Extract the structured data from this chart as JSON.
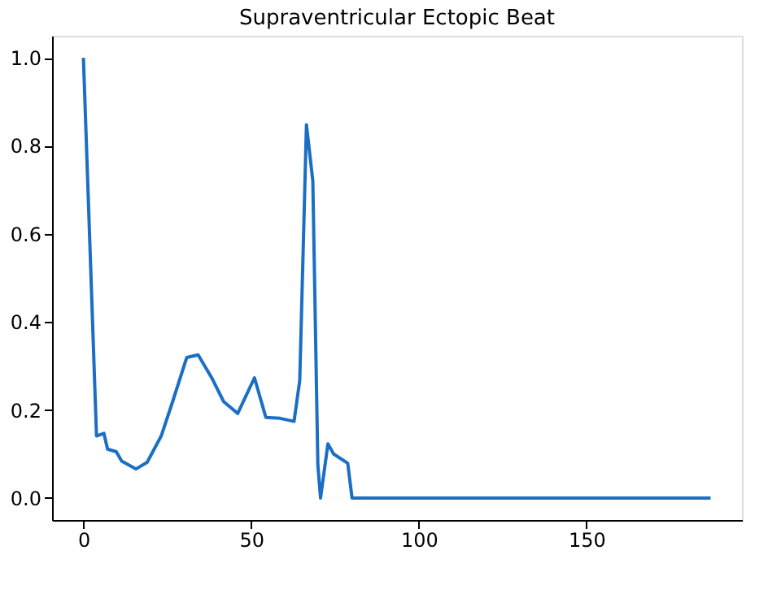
{
  "chart_data": {
    "type": "line",
    "title": "Supraventricular Ectopic Beat",
    "x": [
      0,
      3.9,
      6.1,
      7.2,
      9.8,
      11.4,
      15.7,
      19,
      23.2,
      26.6,
      30.8,
      34.2,
      38.4,
      41.8,
      46,
      51,
      54.4,
      58.6,
      62.8,
      64.5,
      66.5,
      68.4,
      69.9,
      70.7,
      72.9,
      74.6,
      78.8,
      80.1,
      187
    ],
    "series": [
      {
        "color": "#1a6fc4",
        "values": [
          1.0,
          0.141,
          0.147,
          0.111,
          0.105,
          0.084,
          0.066,
          0.081,
          0.141,
          0.219,
          0.319,
          0.325,
          0.271,
          0.219,
          0.192,
          0.273,
          0.183,
          0.181,
          0.174,
          0.267,
          0.848,
          0.72,
          0.075,
          0,
          0.123,
          0.1,
          0.079,
          0,
          0
        ]
      }
    ],
    "xlim": [
      -9.35,
      196.35
    ],
    "xticks": [
      0,
      50,
      100,
      150
    ],
    "ylim": [
      -0.05,
      1.05
    ],
    "yticks": [
      {
        "value": 0,
        "label": "0.0"
      },
      {
        "value": 0.2,
        "label": "0.2"
      },
      {
        "value": 0.4,
        "label": "0.4"
      },
      {
        "value": 0.6,
        "label": "0.6"
      },
      {
        "value": 0.8,
        "label": "0.8"
      },
      {
        "value": 1.0,
        "label": "1.0"
      }
    ],
    "grid": false,
    "marker": "none",
    "line_style": "solid"
  }
}
